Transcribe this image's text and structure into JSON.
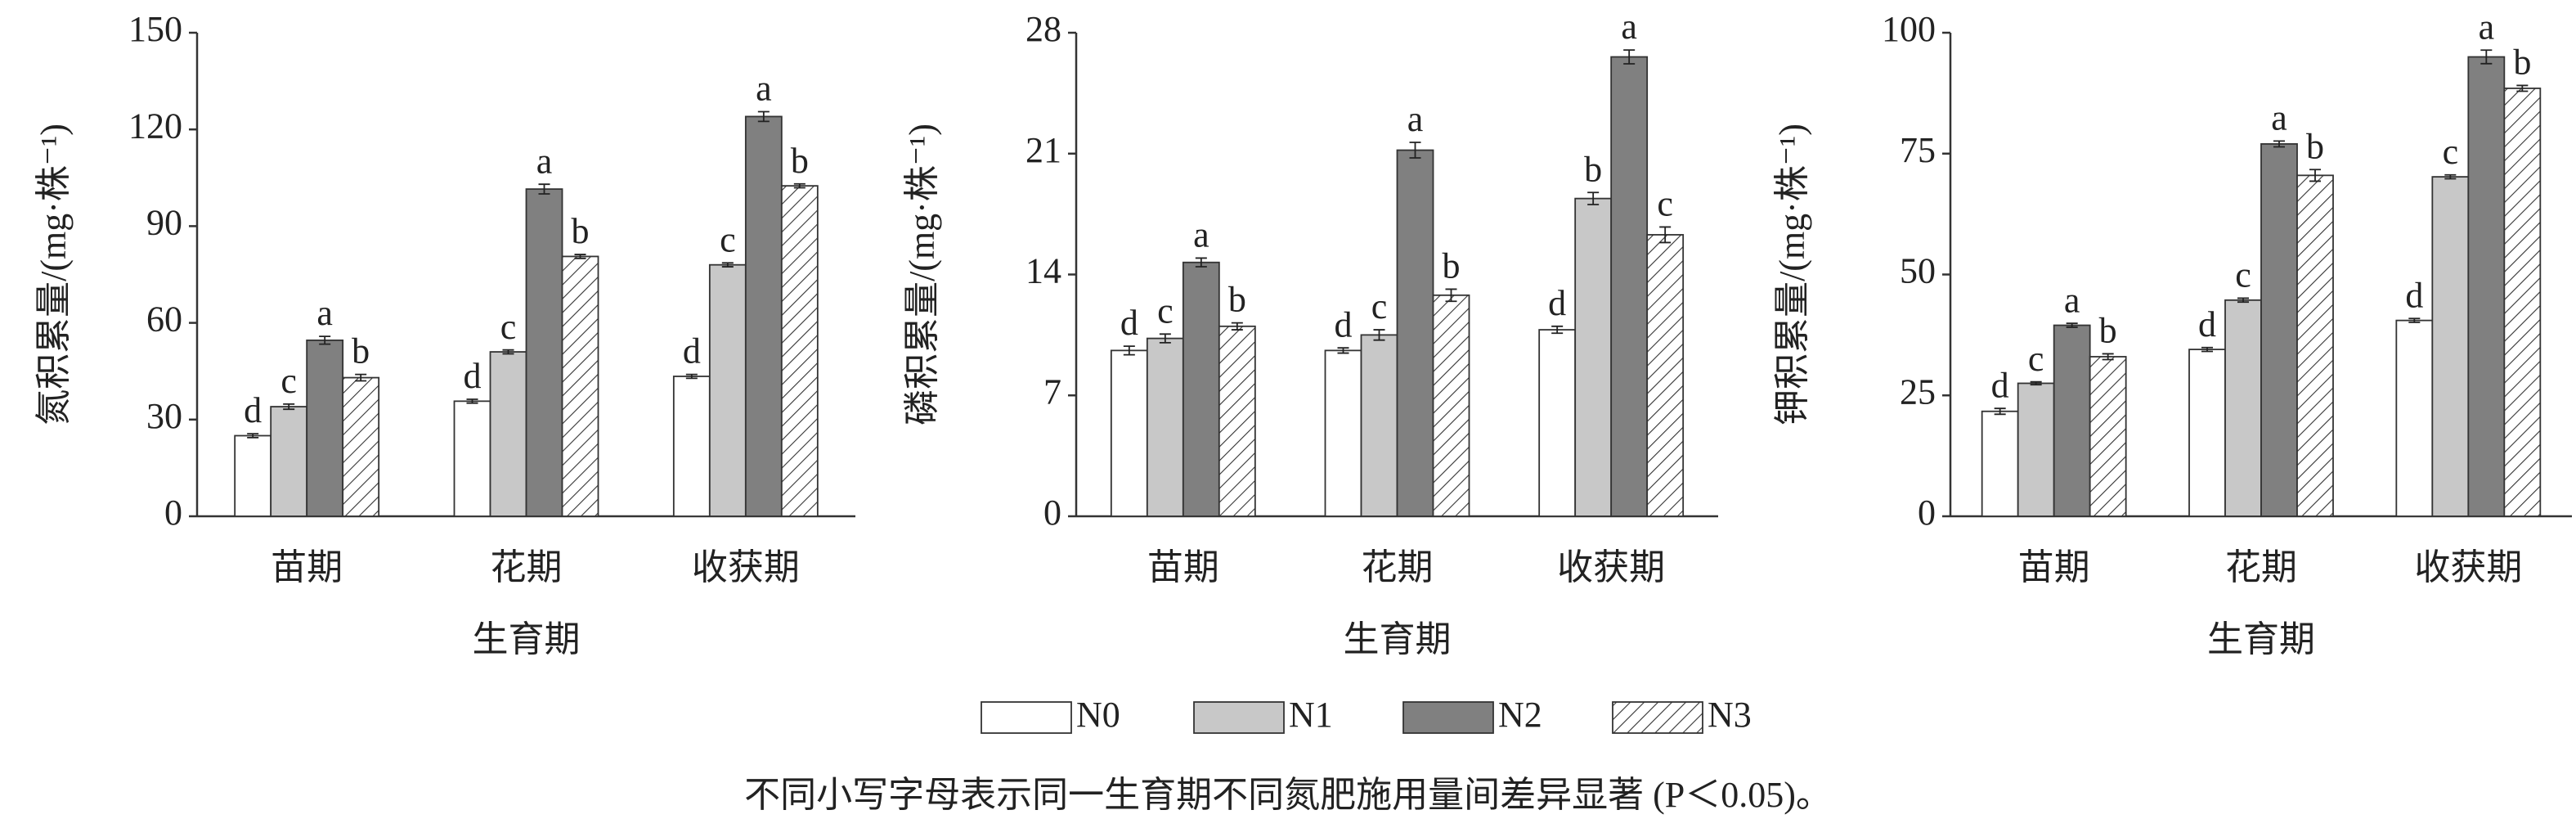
{
  "chart_data": [
    {
      "type": "bar",
      "y_label": "氮积累量/(mg·株⁻¹)",
      "x_label": "生育期",
      "categories": [
        "苗期",
        "花期",
        "收获期"
      ],
      "ylim": [
        0,
        150
      ],
      "yticks": [
        0,
        30,
        60,
        90,
        120,
        150
      ],
      "series": [
        {
          "name": "N0",
          "color": "#ffffff",
          "values": [
            25,
            35.7,
            43.4
          ],
          "errors": [
            0.6,
            0.6,
            0.6
          ],
          "letters": [
            "d",
            "d",
            "d"
          ]
        },
        {
          "name": "N1",
          "color": "#c8c8c8",
          "values": [
            34,
            51,
            78
          ],
          "errors": [
            0.8,
            0.6,
            0.6
          ],
          "letters": [
            "c",
            "c",
            "c"
          ]
        },
        {
          "name": "N2",
          "color": "#808080",
          "values": [
            54.6,
            101.5,
            124
          ],
          "errors": [
            1.2,
            1.5,
            1.5
          ],
          "letters": [
            "a",
            "a",
            "a"
          ]
        },
        {
          "name": "N3",
          "color": "#ffffff",
          "pattern": "hatch",
          "values": [
            43,
            80.6,
            102.5
          ],
          "errors": [
            1.0,
            0.6,
            0.6
          ],
          "letters": [
            "b",
            "b",
            "b"
          ]
        }
      ]
    },
    {
      "type": "bar",
      "y_label": "磷积累量/(mg·株⁻¹)",
      "x_label": "生育期",
      "categories": [
        "苗期",
        "花期",
        "收获期"
      ],
      "ylim": [
        0,
        28
      ],
      "yticks": [
        0,
        7,
        14,
        21,
        28
      ],
      "series": [
        {
          "name": "N0",
          "color": "#ffffff",
          "values": [
            9.6,
            9.6,
            10.8
          ],
          "errors": [
            0.25,
            0.15,
            0.2
          ],
          "letters": [
            "d",
            "d",
            "d"
          ]
        },
        {
          "name": "N1",
          "color": "#c8c8c8",
          "values": [
            10.3,
            10.5,
            18.4
          ],
          "errors": [
            0.25,
            0.3,
            0.35
          ],
          "letters": [
            "c",
            "c",
            "b"
          ]
        },
        {
          "name": "N2",
          "color": "#808080",
          "values": [
            14.7,
            21.2,
            26.6
          ],
          "errors": [
            0.25,
            0.45,
            0.4
          ],
          "letters": [
            "a",
            "a",
            "a"
          ]
        },
        {
          "name": "N3",
          "color": "#ffffff",
          "pattern": "hatch",
          "values": [
            11.0,
            12.8,
            16.3
          ],
          "errors": [
            0.2,
            0.35,
            0.45
          ],
          "letters": [
            "b",
            "b",
            "c"
          ]
        }
      ]
    },
    {
      "type": "bar",
      "y_label": "钾积累量/(mg·株⁻¹)",
      "x_label": "生育期",
      "categories": [
        "苗期",
        "花期",
        "收获期"
      ],
      "ylim": [
        0,
        100
      ],
      "yticks": [
        0,
        25,
        50,
        75,
        100
      ],
      "series": [
        {
          "name": "N0",
          "color": "#ffffff",
          "values": [
            21.7,
            34.5,
            40.5
          ],
          "errors": [
            0.6,
            0.4,
            0.4
          ],
          "letters": [
            "d",
            "d",
            "d"
          ]
        },
        {
          "name": "N1",
          "color": "#c8c8c8",
          "values": [
            27.5,
            44.7,
            70.2
          ],
          "errors": [
            0.3,
            0.4,
            0.4
          ],
          "letters": [
            "c",
            "c",
            "c"
          ]
        },
        {
          "name": "N2",
          "color": "#808080",
          "values": [
            39.5,
            77,
            95
          ],
          "errors": [
            0.4,
            0.6,
            1.4
          ],
          "letters": [
            "a",
            "a",
            "a"
          ]
        },
        {
          "name": "N3",
          "color": "#ffffff",
          "pattern": "hatch",
          "values": [
            33,
            70.5,
            88.5
          ],
          "errors": [
            0.6,
            1.2,
            0.6
          ],
          "letters": [
            "b",
            "b",
            "b"
          ]
        }
      ]
    }
  ],
  "note": "不同小写字母表示同一生育期不同氮肥施用量间差异显著 (P＜0.05)。"
}
